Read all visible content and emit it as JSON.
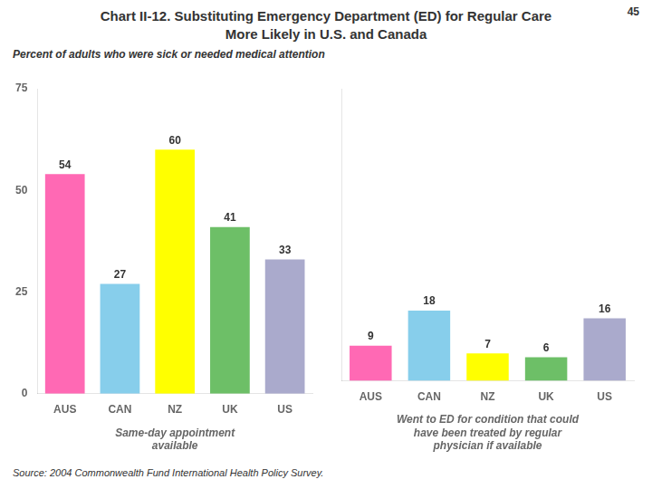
{
  "title": [
    "Chart II-12. Substituting Emergency Department (ED) for Regular Care",
    "More Likely in U.S. and Canada"
  ],
  "subtitle": "Percent of adults who were sick or needed medical attention",
  "page_number": "45",
  "source": "Source: 2004 Commonwealth Fund International Health Policy Survey.",
  "chart_data": [
    {
      "type": "bar",
      "xlabel": "Same-day appointment\navailable",
      "categories": [
        "AUS",
        "CAN",
        "NZ",
        "UK",
        "US"
      ],
      "values": [
        54,
        27,
        60,
        41,
        33
      ],
      "colors": [
        "#FF69B4",
        "#87CEEB",
        "#FFFF00",
        "#6DBF67",
        "#AAAACC"
      ],
      "ylim": [
        0,
        75
      ],
      "yticks": [
        0,
        25,
        50,
        75
      ],
      "grid": false,
      "data_labels": true
    },
    {
      "type": "bar",
      "xlabel": "Went to ED for condition that could\nhave been treated by regular\nphysician if available",
      "categories": [
        "AUS",
        "CAN",
        "NZ",
        "UK",
        "US"
      ],
      "values": [
        9,
        18,
        7,
        6,
        16
      ],
      "colors": [
        "#FF69B4",
        "#87CEEB",
        "#FFFF00",
        "#6DBF67",
        "#AAAACC"
      ],
      "ylim": [
        0,
        75
      ],
      "yticks": [
        0,
        25,
        50,
        75
      ],
      "grid": false,
      "data_labels": true,
      "tick_labels": "x"
    }
  ]
}
